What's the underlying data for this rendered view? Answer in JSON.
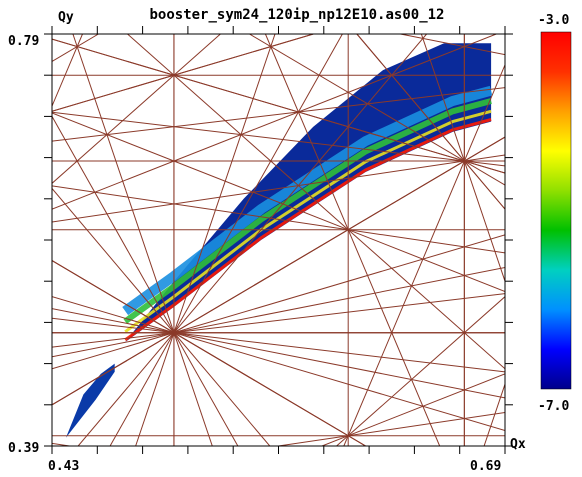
{
  "chart_data": {
    "type": "heatmap",
    "title": "booster_sym24_120ip_np12E10.as00_12",
    "xlabel": "Qx",
    "ylabel": "Qy",
    "xlim": [
      0.43,
      0.69
    ],
    "ylim": [
      0.39,
      0.79
    ],
    "x_tick_labels": [
      "0.43",
      "0.69"
    ],
    "y_tick_labels": [
      "0.39",
      "0.79"
    ],
    "colorbar": {
      "max_label": "-3.0",
      "min_label": "-7.0",
      "range": [
        -7.0,
        -3.0
      ],
      "colormap": [
        "#00008b",
        "#0000ff",
        "#0090ff",
        "#00d0c0",
        "#00c000",
        "#90e000",
        "#ffff00",
        "#ffa000",
        "#ff3000",
        "#ff0000"
      ]
    },
    "resonance_line_color": "#8b3a2a",
    "region_shape": {
      "main_upper_edge": [
        [
          0.472,
          0.491
        ],
        [
          0.5,
          0.55
        ],
        [
          0.54,
          0.63
        ],
        [
          0.58,
          0.7
        ],
        [
          0.62,
          0.755
        ],
        [
          0.655,
          0.781
        ],
        [
          0.68,
          0.781
        ]
      ],
      "main_lower_edge": [
        [
          0.682,
          0.781
        ],
        [
          0.682,
          0.705
        ],
        [
          0.66,
          0.695
        ],
        [
          0.61,
          0.656
        ],
        [
          0.55,
          0.59
        ],
        [
          0.5,
          0.525
        ],
        [
          0.472,
          0.491
        ]
      ],
      "small_upper_edge": [
        [
          0.438,
          0.398
        ],
        [
          0.448,
          0.44
        ],
        [
          0.458,
          0.46
        ],
        [
          0.466,
          0.47
        ]
      ],
      "small_lower_edge": [
        [
          0.466,
          0.462
        ],
        [
          0.455,
          0.435
        ],
        [
          0.438,
          0.398
        ]
      ]
    }
  }
}
